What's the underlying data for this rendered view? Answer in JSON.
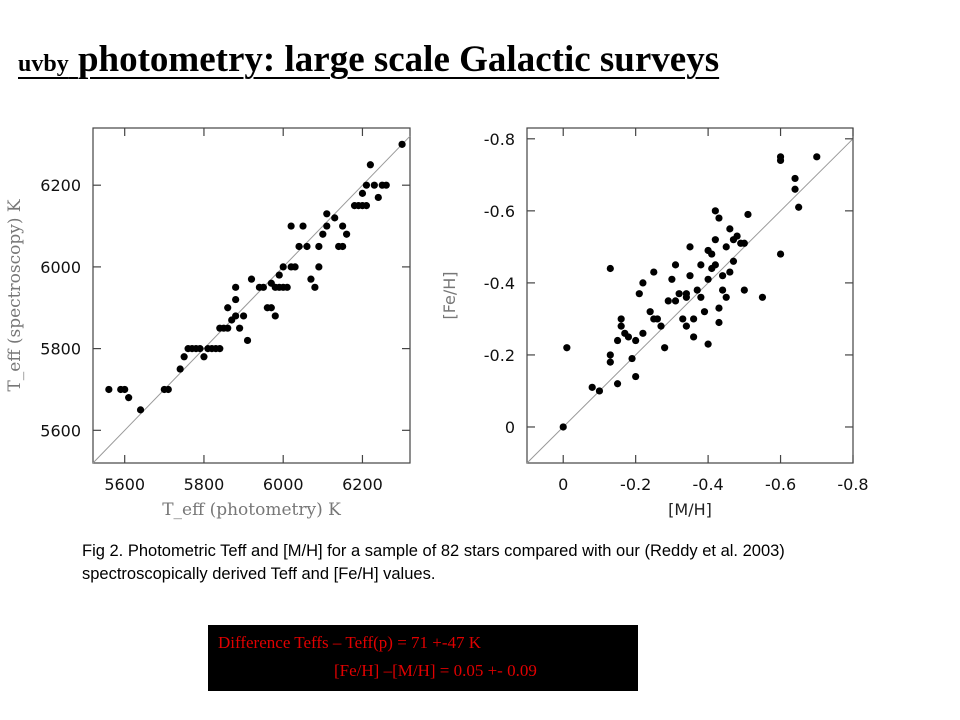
{
  "slide": {
    "title_small": "uvby",
    "title_main": "photometry: large scale Galactic surveys"
  },
  "caption": "Fig 2. Photometric Teff and [M/H] for a sample of 82 stars compared with our (Reddy et al. 2003) spectroscopically derived Teff and [Fe/H] values.",
  "summary": {
    "line1": "Difference Teffs – Teff(p) =  71 +-47 K",
    "line2": "[Fe/H] –[M/H]  = 0.05 +- 0.09",
    "text_color": "#e00000",
    "background": "#000000"
  },
  "chart_data": [
    {
      "type": "scatter",
      "xlabel": "T_eff (photometry) K",
      "ylabel": "T_eff (spectroscopy) K",
      "xlim": [
        5520,
        6320
      ],
      "ylim": [
        5520,
        6340
      ],
      "xticks": [
        5600,
        5800,
        6000,
        6200
      ],
      "yticks": [
        5600,
        5800,
        6000,
        6200
      ],
      "xticklabels": [
        "5600",
        "5800",
        "6000",
        "6200"
      ],
      "yticklabels": [
        "5600",
        "5800",
        "6000",
        "6200"
      ],
      "reference_line": "one-to-one",
      "grid": false,
      "points": [
        [
          5560,
          5700
        ],
        [
          5590,
          5700
        ],
        [
          5600,
          5700
        ],
        [
          5610,
          5680
        ],
        [
          5640,
          5650
        ],
        [
          5700,
          5700
        ],
        [
          5710,
          5700
        ],
        [
          5740,
          5750
        ],
        [
          5750,
          5780
        ],
        [
          5760,
          5800
        ],
        [
          5770,
          5800
        ],
        [
          5780,
          5800
        ],
        [
          5790,
          5800
        ],
        [
          5800,
          5780
        ],
        [
          5810,
          5800
        ],
        [
          5820,
          5800
        ],
        [
          5830,
          5800
        ],
        [
          5840,
          5800
        ],
        [
          5840,
          5850
        ],
        [
          5850,
          5850
        ],
        [
          5860,
          5900
        ],
        [
          5860,
          5850
        ],
        [
          5870,
          5870
        ],
        [
          5880,
          5880
        ],
        [
          5880,
          5920
        ],
        [
          5880,
          5950
        ],
        [
          5890,
          5850
        ],
        [
          5900,
          5880
        ],
        [
          5910,
          5820
        ],
        [
          5920,
          5970
        ],
        [
          5940,
          5950
        ],
        [
          5950,
          5950
        ],
        [
          5960,
          5900
        ],
        [
          5970,
          5960
        ],
        [
          5970,
          5900
        ],
        [
          5980,
          5950
        ],
        [
          5980,
          5880
        ],
        [
          5990,
          5950
        ],
        [
          5990,
          5980
        ],
        [
          6000,
          5950
        ],
        [
          6000,
          6000
        ],
        [
          6010,
          5950
        ],
        [
          6020,
          6000
        ],
        [
          6020,
          6100
        ],
        [
          6030,
          6000
        ],
        [
          6040,
          6050
        ],
        [
          6050,
          6100
        ],
        [
          6060,
          6050
        ],
        [
          6070,
          5970
        ],
        [
          6080,
          5950
        ],
        [
          6090,
          6000
        ],
        [
          6090,
          6050
        ],
        [
          6100,
          6080
        ],
        [
          6110,
          6100
        ],
        [
          6110,
          6130
        ],
        [
          6130,
          6120
        ],
        [
          6140,
          6050
        ],
        [
          6150,
          6050
        ],
        [
          6150,
          6100
        ],
        [
          6160,
          6080
        ],
        [
          6180,
          6150
        ],
        [
          6190,
          6150
        ],
        [
          6200,
          6150
        ],
        [
          6200,
          6180
        ],
        [
          6210,
          6200
        ],
        [
          6210,
          6150
        ],
        [
          6220,
          6250
        ],
        [
          6230,
          6200
        ],
        [
          6240,
          6170
        ],
        [
          6250,
          6200
        ],
        [
          6260,
          6200
        ],
        [
          6300,
          6300
        ]
      ]
    },
    {
      "type": "scatter",
      "xlabel": "[M/H]",
      "ylabel": "[Fe/H]",
      "xlim": [
        0.1,
        -0.8
      ],
      "ylim": [
        0.1,
        -0.83
      ],
      "xticks": [
        0,
        -0.2,
        -0.4,
        -0.6,
        -0.8
      ],
      "yticks": [
        0,
        -0.2,
        -0.4,
        -0.6,
        -0.8
      ],
      "xticklabels": [
        "0",
        "-0.2",
        "-0.4",
        "-0.6",
        "-0.8"
      ],
      "yticklabels": [
        "0",
        "-0.2",
        "-0.4",
        "-0.6",
        "-0.8"
      ],
      "reference_line": "one-to-one",
      "grid": false,
      "points": [
        [
          0.0,
          0.0
        ],
        [
          -0.01,
          -0.22
        ],
        [
          -0.08,
          -0.11
        ],
        [
          -0.1,
          -0.1
        ],
        [
          -0.13,
          -0.44
        ],
        [
          -0.13,
          -0.18
        ],
        [
          -0.13,
          -0.2
        ],
        [
          -0.15,
          -0.12
        ],
        [
          -0.15,
          -0.24
        ],
        [
          -0.16,
          -0.28
        ],
        [
          -0.16,
          -0.3
        ],
        [
          -0.17,
          -0.26
        ],
        [
          -0.18,
          -0.25
        ],
        [
          -0.19,
          -0.19
        ],
        [
          -0.2,
          -0.14
        ],
        [
          -0.2,
          -0.24
        ],
        [
          -0.21,
          -0.37
        ],
        [
          -0.22,
          -0.26
        ],
        [
          -0.22,
          -0.4
        ],
        [
          -0.24,
          -0.32
        ],
        [
          -0.25,
          -0.43
        ],
        [
          -0.25,
          -0.3
        ],
        [
          -0.26,
          -0.3
        ],
        [
          -0.27,
          -0.28
        ],
        [
          -0.28,
          -0.22
        ],
        [
          -0.29,
          -0.35
        ],
        [
          -0.3,
          -0.41
        ],
        [
          -0.31,
          -0.45
        ],
        [
          -0.31,
          -0.35
        ],
        [
          -0.32,
          -0.37
        ],
        [
          -0.33,
          -0.3
        ],
        [
          -0.34,
          -0.37
        ],
        [
          -0.34,
          -0.36
        ],
        [
          -0.34,
          -0.28
        ],
        [
          -0.35,
          -0.42
        ],
        [
          -0.35,
          -0.5
        ],
        [
          -0.36,
          -0.3
        ],
        [
          -0.36,
          -0.25
        ],
        [
          -0.37,
          -0.38
        ],
        [
          -0.38,
          -0.36
        ],
        [
          -0.38,
          -0.45
        ],
        [
          -0.39,
          -0.32
        ],
        [
          -0.4,
          -0.41
        ],
        [
          -0.4,
          -0.49
        ],
        [
          -0.4,
          -0.23
        ],
        [
          -0.41,
          -0.44
        ],
        [
          -0.41,
          -0.48
        ],
        [
          -0.42,
          -0.45
        ],
        [
          -0.42,
          -0.52
        ],
        [
          -0.42,
          -0.6
        ],
        [
          -0.43,
          -0.58
        ],
        [
          -0.43,
          -0.33
        ],
        [
          -0.43,
          -0.29
        ],
        [
          -0.44,
          -0.38
        ],
        [
          -0.44,
          -0.42
        ],
        [
          -0.45,
          -0.5
        ],
        [
          -0.45,
          -0.36
        ],
        [
          -0.46,
          -0.43
        ],
        [
          -0.46,
          -0.55
        ],
        [
          -0.47,
          -0.52
        ],
        [
          -0.47,
          -0.46
        ],
        [
          -0.48,
          -0.53
        ],
        [
          -0.49,
          -0.51
        ],
        [
          -0.5,
          -0.38
        ],
        [
          -0.5,
          -0.51
        ],
        [
          -0.51,
          -0.59
        ],
        [
          -0.55,
          -0.36
        ],
        [
          -0.6,
          -0.48
        ],
        [
          -0.6,
          -0.74
        ],
        [
          -0.6,
          -0.75
        ],
        [
          -0.64,
          -0.69
        ],
        [
          -0.64,
          -0.66
        ],
        [
          -0.65,
          -0.61
        ],
        [
          -0.7,
          -0.75
        ]
      ]
    }
  ]
}
